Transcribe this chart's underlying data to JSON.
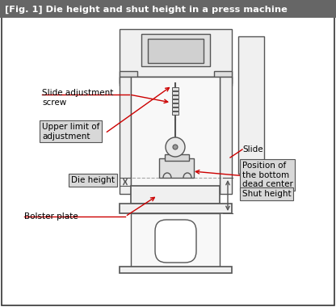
{
  "title": "[Fig. 1] Die height and shut height in a press machine",
  "title_bg": "#666666",
  "title_color": "#ffffff",
  "bg_color": "#ffffff",
  "line_color": "#555555",
  "arrow_color": "#cc0000",
  "label_bg": "#d8d8d8",
  "labels": {
    "slide_adj_screw": "Slide adjustment\nscrew",
    "upper_limit": "Upper limit of\nadjustment",
    "slide": "Slide",
    "bottom_dead": "Position of\nthe bottom\ndead center",
    "die_height": "Die height",
    "shut_height": "Shut height",
    "bolster": "Bolster plate"
  }
}
